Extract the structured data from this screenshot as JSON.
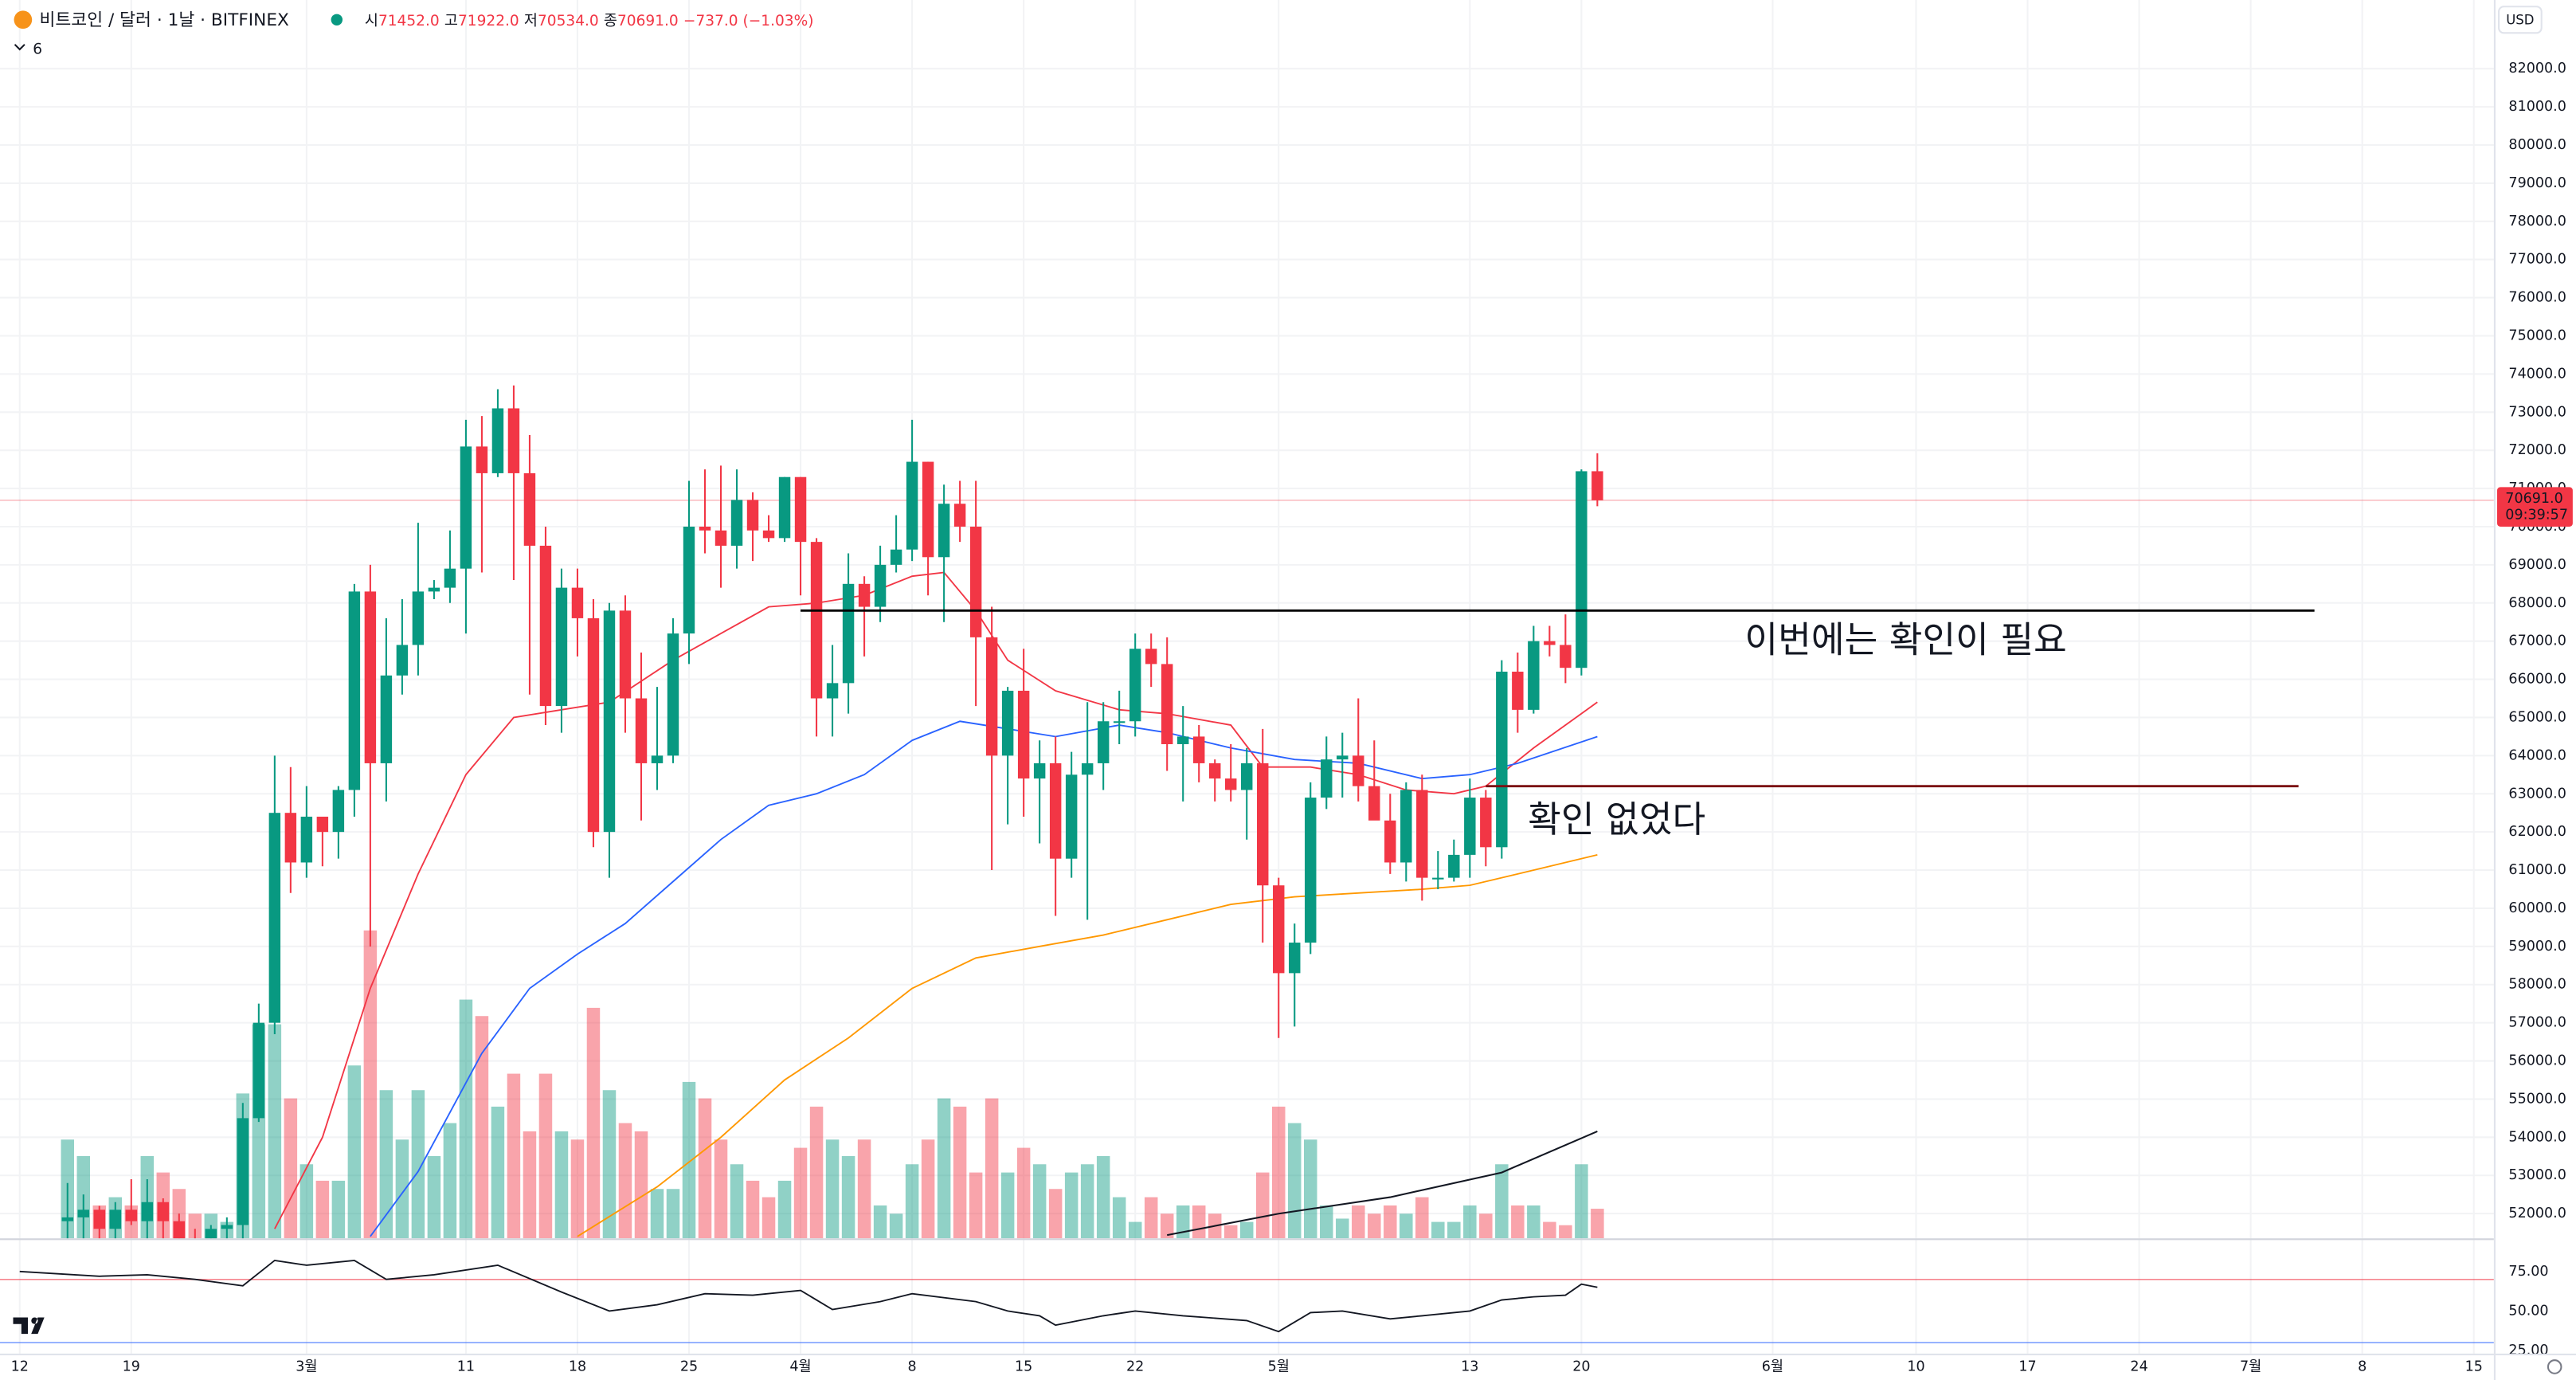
{
  "header": {
    "symbol": "비트코인 / 달러 · 1날 · BITFINEX",
    "ohlc": [
      {
        "label": "시",
        "value": "71452.0"
      },
      {
        "label": "고",
        "value": "71922.0"
      },
      {
        "label": "저",
        "value": "70534.0"
      },
      {
        "label": "종",
        "value": "70691.0"
      }
    ],
    "change": "−737.0 (−1.03%)",
    "indicator": "6",
    "currency": "USD"
  },
  "chart_data": {
    "type": "candlestick",
    "categories": [
      "02-15",
      "02-16",
      "02-17",
      "02-18",
      "02-19",
      "02-20",
      "02-21",
      "02-22",
      "02-23",
      "02-24",
      "02-25",
      "02-26",
      "02-27",
      "02-28",
      "02-29",
      "03-01",
      "03-02",
      "03-03",
      "03-04",
      "03-05",
      "03-06",
      "03-07",
      "03-08",
      "03-09",
      "03-10",
      "03-11",
      "03-12",
      "03-13",
      "03-14",
      "03-15",
      "03-16",
      "03-17",
      "03-18",
      "03-19",
      "03-20",
      "03-21",
      "03-22",
      "03-23",
      "03-24",
      "03-25",
      "03-26",
      "03-27",
      "03-28",
      "03-29",
      "03-30",
      "03-31",
      "04-01",
      "04-02",
      "04-03",
      "04-04",
      "04-05",
      "04-06",
      "04-07",
      "04-08",
      "04-09",
      "04-10",
      "04-11",
      "04-12",
      "04-13",
      "04-14",
      "04-15",
      "04-16",
      "04-17",
      "04-18",
      "04-19",
      "04-20",
      "04-21",
      "04-22",
      "04-23",
      "04-24",
      "04-25",
      "04-26",
      "04-27",
      "04-28",
      "04-29",
      "04-30",
      "05-01",
      "05-02",
      "05-03",
      "05-04",
      "05-05",
      "05-06",
      "05-07",
      "05-08",
      "05-09",
      "05-10",
      "05-11",
      "05-12",
      "05-13",
      "05-14",
      "05-15",
      "05-16",
      "05-17",
      "05-18",
      "05-19",
      "05-20",
      "05-21"
    ],
    "open": [
      51800,
      51900,
      52100,
      51600,
      52100,
      51800,
      52300,
      51800,
      51300,
      50700,
      51600,
      51700,
      54500,
      57000,
      62500,
      61200,
      62400,
      62000,
      63100,
      68300,
      63800,
      66100,
      66900,
      68300,
      68400,
      68900,
      72100,
      71400,
      73100,
      71400,
      69500,
      65300,
      68400,
      67600,
      62000,
      67800,
      65500,
      63800,
      64000,
      67200,
      70000,
      69900,
      69500,
      70700,
      69900,
      69700,
      71300,
      69600,
      65500,
      65900,
      68500,
      67900,
      69000,
      69400,
      71700,
      69200,
      70600,
      70000,
      67100,
      64000,
      65700,
      63400,
      63800,
      61300,
      63500,
      63800,
      64900,
      64900,
      66800,
      66400,
      64300,
      64500,
      63800,
      63400,
      63100,
      63800,
      60600,
      58300,
      59100,
      62900,
      63900,
      64000,
      63200,
      62300,
      61200,
      63100,
      60800,
      60800,
      61400,
      62900,
      61600,
      66200,
      65200,
      67000,
      66900,
      66300,
      71452
    ],
    "high": [
      52800,
      52500,
      52200,
      52300,
      52900,
      52900,
      52400,
      52000,
      51600,
      51700,
      51900,
      54900,
      57500,
      64000,
      63700,
      63200,
      62400,
      63200,
      68500,
      69000,
      67600,
      68100,
      70100,
      68600,
      69900,
      72800,
      72900,
      73600,
      73700,
      72400,
      70000,
      68900,
      68900,
      68100,
      68000,
      68200,
      66700,
      65800,
      67600,
      71200,
      71500,
      71600,
      71500,
      70900,
      70300,
      71300,
      71300,
      69700,
      66900,
      69300,
      68700,
      69500,
      70300,
      72800,
      71700,
      71100,
      71200,
      71200,
      67900,
      65800,
      66800,
      64400,
      64500,
      64100,
      65400,
      65400,
      65700,
      67200,
      67200,
      67100,
      65300,
      64800,
      63900,
      64300,
      64200,
      64700,
      60800,
      59600,
      63300,
      64500,
      64600,
      65500,
      64400,
      63000,
      63300,
      63500,
      61500,
      61800,
      63400,
      63100,
      66500,
      66700,
      67400,
      67400,
      67700,
      71500,
      71922
    ],
    "low": [
      51300,
      51000,
      50700,
      51200,
      51700,
      50800,
      50600,
      50900,
      50600,
      50600,
      51300,
      50900,
      54400,
      56700,
      60400,
      60800,
      61100,
      61300,
      62400,
      59000,
      62800,
      65600,
      66100,
      68100,
      68000,
      67200,
      68800,
      71300,
      68600,
      65600,
      64800,
      64600,
      66600,
      61600,
      60800,
      64600,
      62300,
      63100,
      63800,
      66400,
      69300,
      68400,
      68900,
      69100,
      69600,
      69600,
      68200,
      64500,
      64500,
      65100,
      66600,
      67500,
      68800,
      69100,
      68200,
      67500,
      69600,
      65300,
      61000,
      62200,
      62400,
      61700,
      59800,
      60800,
      59700,
      63100,
      64300,
      64500,
      65800,
      63600,
      62800,
      63300,
      62800,
      62800,
      61800,
      59100,
      56600,
      56900,
      58800,
      62600,
      62900,
      62800,
      62600,
      60900,
      60700,
      60200,
      60500,
      60700,
      60800,
      61100,
      61300,
      64600,
      65100,
      66600,
      65900,
      66100,
      70534
    ],
    "close": [
      51900,
      52100,
      51600,
      52100,
      51800,
      52300,
      51800,
      51300,
      50700,
      51600,
      51700,
      54500,
      57000,
      62500,
      61200,
      62400,
      62000,
      63100,
      68300,
      63800,
      66100,
      66900,
      68300,
      68400,
      68900,
      72100,
      71400,
      73100,
      71400,
      69500,
      65300,
      68400,
      67600,
      62000,
      67800,
      65500,
      63800,
      64000,
      67200,
      70000,
      69900,
      69500,
      70700,
      69900,
      69700,
      71300,
      69600,
      65500,
      65900,
      68500,
      67900,
      69000,
      69400,
      71700,
      69200,
      70600,
      70000,
      67100,
      64000,
      65700,
      63400,
      63800,
      61300,
      63500,
      63800,
      64900,
      64900,
      66800,
      66400,
      64300,
      64500,
      63800,
      63400,
      63100,
      63800,
      60600,
      58300,
      59100,
      62900,
      63900,
      64000,
      63200,
      62300,
      61200,
      63100,
      60800,
      60800,
      61400,
      62900,
      61600,
      66200,
      65200,
      67000,
      66900,
      66300,
      71452,
      70691
    ],
    "volume": [
      60,
      50,
      20,
      25,
      20,
      50,
      40,
      30,
      15,
      15,
      10,
      88,
      130,
      130,
      85,
      45,
      35,
      35,
      105,
      187,
      90,
      60,
      90,
      50,
      70,
      145,
      135,
      80,
      100,
      65,
      100,
      65,
      60,
      140,
      90,
      70,
      65,
      30,
      30,
      95,
      85,
      60,
      45,
      35,
      25,
      35,
      55,
      80,
      60,
      50,
      60,
      20,
      15,
      45,
      60,
      85,
      80,
      40,
      85,
      40,
      55,
      45,
      30,
      40,
      45,
      50,
      25,
      10,
      25,
      15,
      20,
      20,
      15,
      8,
      10,
      40,
      80,
      70,
      60,
      20,
      12,
      20,
      15,
      20,
      15,
      25,
      10,
      10,
      20,
      15,
      45,
      20,
      20,
      10,
      8,
      45,
      18
    ],
    "vlim": [
      0,
      160
    ],
    "up_color": "#089981",
    "down_color": "#f23645",
    "ylim": [
      51350,
      83800
    ],
    "yticks": [
      {
        "value": 52000,
        "label": "52000.0"
      },
      {
        "value": 53000,
        "label": "53000.0"
      },
      {
        "value": 54000,
        "label": "54000.0"
      },
      {
        "value": 55000,
        "label": "55000.0"
      },
      {
        "value": 56000,
        "label": "56000.0"
      },
      {
        "value": 57000,
        "label": "57000.0"
      },
      {
        "value": 58000,
        "label": "58000.0"
      },
      {
        "value": 59000,
        "label": "59000.0"
      },
      {
        "value": 60000,
        "label": "60000.0"
      },
      {
        "value": 61000,
        "label": "61000.0"
      },
      {
        "value": 62000,
        "label": "62000.0"
      },
      {
        "value": 63000,
        "label": "63000.0"
      },
      {
        "value": 64000,
        "label": "64000.0"
      },
      {
        "value": 65000,
        "label": "65000.0"
      },
      {
        "value": 66000,
        "label": "66000.0"
      },
      {
        "value": 67000,
        "label": "67000.0"
      },
      {
        "value": 68000,
        "label": "68000.0"
      },
      {
        "value": 69000,
        "label": "69000.0"
      },
      {
        "value": 70000,
        "label": "70000.0"
      },
      {
        "value": 71000,
        "label": "71000.0"
      },
      {
        "value": 72000,
        "label": "72000.0"
      },
      {
        "value": 73000,
        "label": "73000.0"
      },
      {
        "value": 74000,
        "label": "74000.0"
      },
      {
        "value": 75000,
        "label": "75000.0"
      },
      {
        "value": 76000,
        "label": "76000.0"
      },
      {
        "value": 77000,
        "label": "77000.0"
      },
      {
        "value": 78000,
        "label": "78000.0"
      },
      {
        "value": 79000,
        "label": "79000.0"
      },
      {
        "value": 80000,
        "label": "80000.0"
      },
      {
        "value": 81000,
        "label": "81000.0"
      },
      {
        "value": 82000,
        "label": "82000.0"
      }
    ],
    "xticks": [
      {
        "value": "02-12",
        "label": "12"
      },
      {
        "value": "02-19",
        "label": "19"
      },
      {
        "value": "03-01",
        "label": "3월"
      },
      {
        "value": "03-11",
        "label": "11"
      },
      {
        "value": "03-18",
        "label": "18"
      },
      {
        "value": "03-25",
        "label": "25"
      },
      {
        "value": "04-01",
        "label": "4월"
      },
      {
        "value": "04-08",
        "label": "8"
      },
      {
        "value": "04-15",
        "label": "15"
      },
      {
        "value": "04-22",
        "label": "22"
      },
      {
        "value": "05-01",
        "label": "5월"
      },
      {
        "value": "05-13",
        "label": "13"
      },
      {
        "value": "05-20",
        "label": "20"
      },
      {
        "value": "06-01",
        "label": "6월"
      },
      {
        "value": "06-10",
        "label": "10"
      },
      {
        "value": "06-17",
        "label": "17"
      },
      {
        "value": "06-24",
        "label": "24"
      },
      {
        "value": "07-01",
        "label": "7월"
      },
      {
        "value": "07-08",
        "label": "8"
      },
      {
        "value": "07-15",
        "label": "15"
      }
    ],
    "moving_averages": [
      {
        "color": "#f23645",
        "x": [
          "02-28",
          "03-02",
          "03-05",
          "03-08",
          "03-11",
          "03-14",
          "03-17",
          "03-20",
          "03-24",
          "03-27",
          "03-30",
          "04-02",
          "04-05",
          "04-08",
          "04-10",
          "04-12",
          "04-14",
          "04-17",
          "04-21",
          "04-24",
          "04-28",
          "04-30",
          "05-03",
          "05-06",
          "05-09",
          "05-12",
          "05-14",
          "05-17",
          "05-21"
        ],
        "values": [
          51600,
          54000,
          57900,
          60900,
          63500,
          65000,
          65200,
          65400,
          66500,
          67200,
          67900,
          68000,
          68200,
          68700,
          68800,
          67800,
          66500,
          65700,
          65200,
          65100,
          64800,
          63700,
          63700,
          63500,
          63100,
          63000,
          63200,
          64200,
          65400
        ]
      },
      {
        "color": "#2962ff",
        "x": [
          "03-05",
          "03-08",
          "03-12",
          "03-15",
          "03-18",
          "03-21",
          "03-24",
          "03-27",
          "03-30",
          "04-02",
          "04-05",
          "04-08",
          "04-11",
          "04-14",
          "04-17",
          "04-21",
          "04-24",
          "04-28",
          "05-02",
          "05-06",
          "05-10",
          "05-13",
          "05-16",
          "05-21"
        ],
        "values": [
          51400,
          53100,
          56200,
          57900,
          58800,
          59600,
          60700,
          61800,
          62700,
          63000,
          63500,
          64400,
          64900,
          64700,
          64500,
          64800,
          64600,
          64200,
          63900,
          63800,
          63400,
          63500,
          63800,
          64500
        ]
      },
      {
        "color": "#ff9800",
        "x": [
          "03-18",
          "03-23",
          "03-27",
          "03-31",
          "04-04",
          "04-08",
          "04-12",
          "04-16",
          "04-20",
          "04-24",
          "04-28",
          "05-02",
          "05-06",
          "05-10",
          "05-13",
          "05-16",
          "05-21"
        ],
        "values": [
          51400,
          52700,
          54000,
          55500,
          56600,
          57900,
          58700,
          59000,
          59300,
          59700,
          60100,
          60300,
          60400,
          60500,
          60600,
          60900,
          61400
        ]
      }
    ],
    "volume_ma": {
      "color": "#131722",
      "x": [
        "04-24",
        "05-01",
        "05-08",
        "05-15",
        "05-21"
      ],
      "values": [
        2,
        15,
        25,
        40,
        65
      ]
    },
    "levels": [
      {
        "value": 67800,
        "from": "04-01",
        "to": "07-05",
        "color": "#000000"
      },
      {
        "value": 63200,
        "from": "05-14",
        "to": "07-04",
        "color": "#7b1113"
      }
    ],
    "annotations": [
      {
        "text": "이번에는 확인이 필요",
        "color": "#000000"
      },
      {
        "text": "확인 없었다",
        "color": "#7b1113"
      }
    ],
    "last_price": {
      "value": 70691,
      "label": "70691.0",
      "countdown": "09:39:57",
      "color": "#f23645"
    },
    "rsi": {
      "color": "#131722",
      "ylim": [
        23,
        96
      ],
      "yticks": [
        {
          "value": 75,
          "label": "75.00"
        },
        {
          "value": 50,
          "label": "50.00"
        },
        {
          "value": 25,
          "label": "25.00"
        }
      ],
      "levels": [
        {
          "value": 70,
          "color": "#f23645"
        },
        {
          "value": 30,
          "color": "#2962ff"
        }
      ],
      "x": [
        "02-12",
        "02-17",
        "02-20",
        "02-23",
        "02-26",
        "02-28",
        "03-01",
        "03-04",
        "03-06",
        "03-09",
        "03-13",
        "03-17",
        "03-20",
        "03-23",
        "03-26",
        "03-29",
        "04-01",
        "04-03",
        "04-06",
        "04-08",
        "04-12",
        "04-14",
        "04-16",
        "04-17",
        "04-20",
        "04-22",
        "04-25",
        "04-29",
        "05-01",
        "05-03",
        "05-05",
        "05-08",
        "05-10",
        "05-13",
        "05-15",
        "05-17",
        "05-19",
        "05-20",
        "05-21"
      ],
      "values": [
        75,
        72,
        73,
        70,
        66,
        82,
        79,
        82,
        70,
        73,
        79,
        62,
        50,
        54,
        61,
        60,
        63,
        51,
        56,
        61,
        56,
        50,
        47,
        41,
        47,
        50,
        47,
        44,
        37,
        49,
        50,
        45,
        47,
        50,
        57,
        59,
        60,
        67,
        65
      ]
    }
  }
}
